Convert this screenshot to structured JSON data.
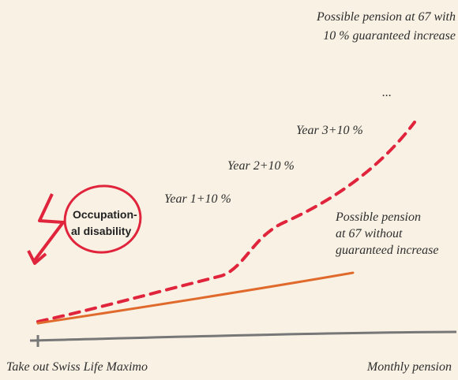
{
  "top_note": {
    "lines": [
      "Possible pension at 67 with",
      "10 % guaranteed increase"
    ]
  },
  "ellipsis": "...",
  "steps": [
    "Year 3+10 %",
    "Year 2+10 %",
    "Year 1+10 %"
  ],
  "disability": {
    "lines": [
      "Occupation-",
      "al disability"
    ]
  },
  "side_note": {
    "lines": [
      "Possible pension",
      "at 67 without",
      "guaranteed increase"
    ]
  },
  "footer": {
    "left": "Take out Swiss Life Maximo",
    "right": "Monthly pension"
  }
}
